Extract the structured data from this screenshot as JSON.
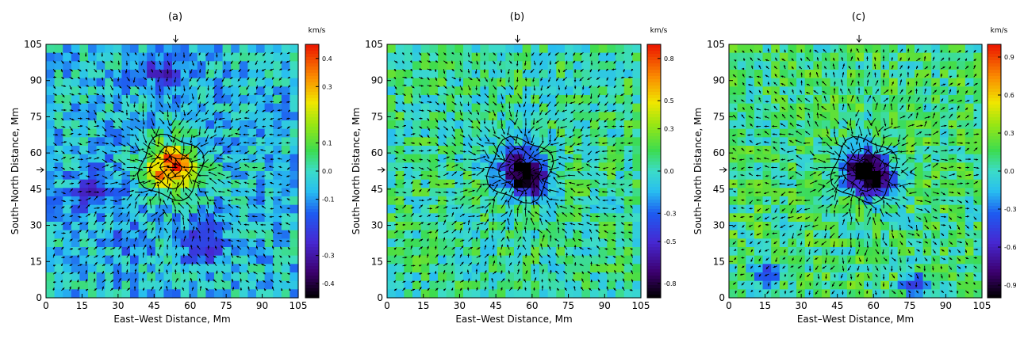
{
  "panels": [
    {
      "label": "(a)",
      "xlabel": "East–West Distance, Mm",
      "ylabel": "South–North Distance, Mm",
      "xticks": [
        "0",
        "15",
        "30",
        "45",
        "60",
        "75",
        "90",
        "105"
      ],
      "yticks": [
        "0",
        "15",
        "30",
        "45",
        "60",
        "75",
        "90",
        "105"
      ],
      "colorbar_unit": "km/s",
      "colorbar_ticks": [
        "0.4",
        "0.3",
        "0.1",
        "0.0",
        "-0.1",
        "-0.3",
        "-0.4"
      ],
      "center_marker": [
        54,
        53
      ]
    },
    {
      "label": "(b)",
      "xlabel": "East–West Distance, Mm",
      "ylabel": "South–North Distance, Mm",
      "xticks": [
        "0",
        "15",
        "30",
        "45",
        "60",
        "75",
        "90",
        "105"
      ],
      "yticks": [
        "0",
        "15",
        "30",
        "45",
        "60",
        "75",
        "90",
        "105"
      ],
      "colorbar_unit": "km/s",
      "colorbar_ticks": [
        "0.8",
        "0.5",
        "0.3",
        "0.0",
        "-0.3",
        "-0.5",
        "-0.8"
      ],
      "center_marker": [
        54,
        53
      ]
    },
    {
      "label": "(c)",
      "xlabel": "East–West Distance, Mm",
      "ylabel": "South–North Distance, Mm",
      "xticks": [
        "0",
        "15",
        "30",
        "45",
        "60",
        "75",
        "90",
        "105"
      ],
      "yticks": [
        "0",
        "15",
        "30",
        "45",
        "60",
        "75",
        "90",
        "105"
      ],
      "colorbar_unit": "km/s",
      "colorbar_ticks": [
        "0.9",
        "0.6",
        "0.3",
        "0.0",
        "-0.3",
        "-0.6",
        "-0.9"
      ],
      "center_marker": [
        54,
        53
      ]
    }
  ],
  "chart_data": [
    {
      "type": "heatmap",
      "title": "(a)",
      "xlabel": "East–West Distance, Mm",
      "ylabel": "South–North Distance, Mm",
      "xlim": [
        0,
        105
      ],
      "ylim": [
        0,
        105
      ],
      "colorbar": {
        "unit": "km/s",
        "range": [
          -0.45,
          0.45
        ],
        "ticks": [
          0.4,
          0.3,
          0.1,
          0.0,
          -0.1,
          -0.3,
          -0.4
        ]
      },
      "background_mean": -0.05,
      "features": [
        {
          "kind": "peak",
          "x": 52,
          "y": 54,
          "value": 0.42,
          "radius": 10
        },
        {
          "kind": "trough",
          "x": 49,
          "y": 93,
          "value": -0.25,
          "radius": 8
        },
        {
          "kind": "trough",
          "x": 20,
          "y": 45,
          "value": -0.22,
          "radius": 10
        },
        {
          "kind": "trough",
          "x": 65,
          "y": 22,
          "value": -0.22,
          "radius": 9
        },
        {
          "kind": "trough",
          "x": 35,
          "y": 25,
          "value": -0.15,
          "radius": 7
        }
      ],
      "vector_field": "converging flow toward sunspot center",
      "contours": "sunspot umbra/penumbra boundaries"
    },
    {
      "type": "heatmap",
      "title": "(b)",
      "xlabel": "East–West Distance, Mm",
      "ylabel": "South–North Distance, Mm",
      "xlim": [
        0,
        105
      ],
      "ylim": [
        0,
        105
      ],
      "colorbar": {
        "unit": "km/s",
        "range": [
          -0.9,
          0.9
        ],
        "ticks": [
          0.8,
          0.5,
          0.3,
          0.0,
          -0.3,
          -0.5,
          -0.8
        ]
      },
      "background_mean": 0.05,
      "features": [
        {
          "kind": "trough",
          "x": 55,
          "y": 53,
          "value": -0.75,
          "radius": 9
        },
        {
          "kind": "trough",
          "x": 60,
          "y": 48,
          "value": -0.6,
          "radius": 6
        }
      ],
      "vector_field": "converging flow toward sunspot center",
      "contours": "sunspot umbra/penumbra boundaries"
    },
    {
      "type": "heatmap",
      "title": "(c)",
      "xlabel": "East–West Distance, Mm",
      "ylabel": "South–North Distance, Mm",
      "xlim": [
        0,
        105
      ],
      "ylim": [
        0,
        105
      ],
      "colorbar": {
        "unit": "km/s",
        "range": [
          -1.0,
          1.0
        ],
        "ticks": [
          0.9,
          0.6,
          0.3,
          0.0,
          -0.3,
          -0.6,
          -0.9
        ]
      },
      "background_mean": 0.1,
      "features": [
        {
          "kind": "trough",
          "x": 56,
          "y": 53,
          "value": -0.95,
          "radius": 9
        },
        {
          "kind": "trough",
          "x": 62,
          "y": 48,
          "value": -0.8,
          "radius": 6
        },
        {
          "kind": "trough",
          "x": 15,
          "y": 10,
          "value": -0.5,
          "radius": 5
        },
        {
          "kind": "trough",
          "x": 77,
          "y": 5,
          "value": -0.5,
          "radius": 5
        }
      ],
      "vector_field": "flow diverging away from center in outer region",
      "contours": "sunspot umbra/penumbra boundaries"
    }
  ]
}
